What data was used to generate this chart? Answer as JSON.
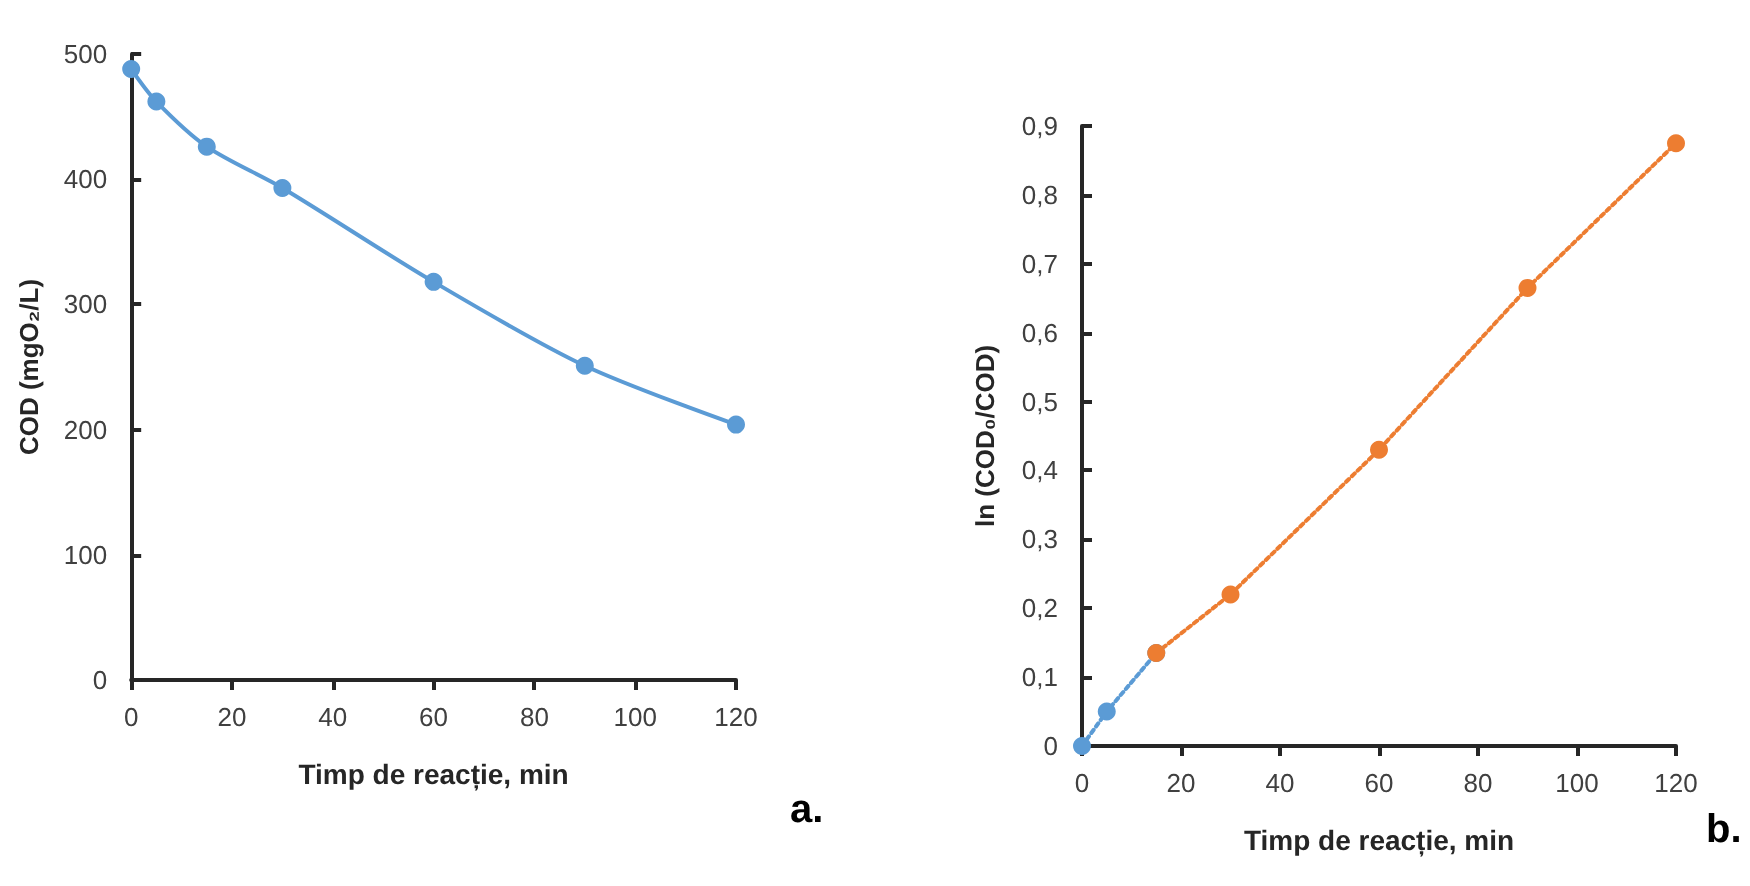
{
  "chart_data": [
    {
      "type": "line",
      "xlabel": "Timp de reacție, min",
      "ylabel": "COD (mgO₂/L)",
      "annotations": [
        "a."
      ],
      "xlim": [
        0,
        120
      ],
      "xticks": [
        0,
        20,
        40,
        60,
        80,
        100,
        120
      ],
      "ylim": [
        0,
        500
      ],
      "yticks": [
        0,
        100,
        200,
        300,
        400,
        500
      ],
      "marker": "circle",
      "line_style": "solid",
      "series": [
        {
          "color": "#5b9bd5",
          "x": [
            0,
            5,
            15,
            30,
            60,
            90,
            120
          ],
          "values": [
            488,
            462,
            426,
            393,
            318,
            251,
            204
          ]
        }
      ]
    },
    {
      "type": "line",
      "xlabel": "Timp de reacție, min",
      "ylabel": "ln (COD₀/COD)",
      "annotations": [
        "b."
      ],
      "xlim": [
        0,
        120
      ],
      "xticks": [
        0,
        20,
        40,
        60,
        80,
        100,
        120
      ],
      "ylim": [
        0,
        0.9
      ],
      "yticks": [
        0,
        {
          "value": 0.1,
          "label": "0,1"
        },
        {
          "value": 0.2,
          "label": "0,2"
        },
        {
          "value": 0.3,
          "label": "0,3"
        },
        {
          "value": 0.4,
          "label": "0,4"
        },
        {
          "value": 0.5,
          "label": "0,5"
        },
        {
          "value": 0.6,
          "label": "0,6"
        },
        {
          "value": 0.7,
          "label": "0,7"
        },
        {
          "value": 0.8,
          "label": "0,8"
        },
        {
          "value": 0.9,
          "label": "0,9"
        }
      ],
      "marker": "circle",
      "line_style": "dotted",
      "series": [
        {
          "color": "#5b9bd5",
          "x": [
            0,
            5,
            15
          ],
          "values": [
            0,
            0.05,
            0.135
          ]
        },
        {
          "color": "#ed7d31",
          "x": [
            15,
            30,
            60,
            90,
            120
          ],
          "values": [
            0.135,
            0.22,
            0.43,
            0.665,
            0.875
          ]
        }
      ]
    }
  ]
}
